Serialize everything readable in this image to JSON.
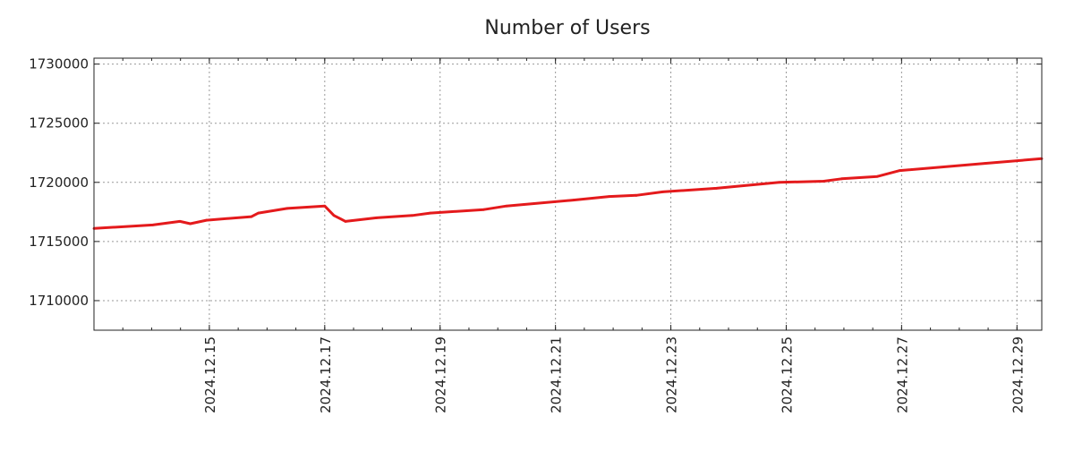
{
  "chart_data": {
    "type": "line",
    "title": "Number of Users",
    "xlabel": "",
    "ylabel": "",
    "x_unit": "day of December 2024",
    "xlim": [
      13.0,
      29.43
    ],
    "ylim": [
      1707500,
      1730500
    ],
    "grid": true,
    "y_ticks": [
      1710000,
      1715000,
      1720000,
      1725000,
      1730000
    ],
    "y_tick_labels": [
      "1710000",
      "1715000",
      "1720000",
      "1725000",
      "1730000"
    ],
    "x_ticks": [
      15,
      17,
      19,
      21,
      23,
      25,
      27,
      29
    ],
    "x_tick_labels": [
      "2024.12.15",
      "2024.12.17",
      "2024.12.19",
      "2024.12.21",
      "2024.12.23",
      "2024.12.25",
      "2024.12.27",
      "2024.12.29"
    ],
    "series": [
      {
        "name": "Users",
        "color": "#e41a1c",
        "points": [
          [
            13.0,
            1716100
          ],
          [
            14.02,
            1716400
          ],
          [
            14.49,
            1716700
          ],
          [
            14.67,
            1716500
          ],
          [
            14.95,
            1716800
          ],
          [
            15.73,
            1717100
          ],
          [
            15.85,
            1717400
          ],
          [
            16.35,
            1717800
          ],
          [
            17.0,
            1718000
          ],
          [
            17.16,
            1717200
          ],
          [
            17.36,
            1716700
          ],
          [
            17.9,
            1717000
          ],
          [
            18.52,
            1717200
          ],
          [
            18.83,
            1717400
          ],
          [
            19.76,
            1717700
          ],
          [
            20.15,
            1718000
          ],
          [
            21.31,
            1718500
          ],
          [
            21.93,
            1718800
          ],
          [
            22.4,
            1718900
          ],
          [
            22.86,
            1719200
          ],
          [
            23.79,
            1719500
          ],
          [
            24.88,
            1720000
          ],
          [
            25.65,
            1720100
          ],
          [
            25.96,
            1720300
          ],
          [
            26.58,
            1720500
          ],
          [
            26.97,
            1721000
          ],
          [
            28.44,
            1721600
          ],
          [
            29.43,
            1722000
          ]
        ]
      }
    ]
  }
}
